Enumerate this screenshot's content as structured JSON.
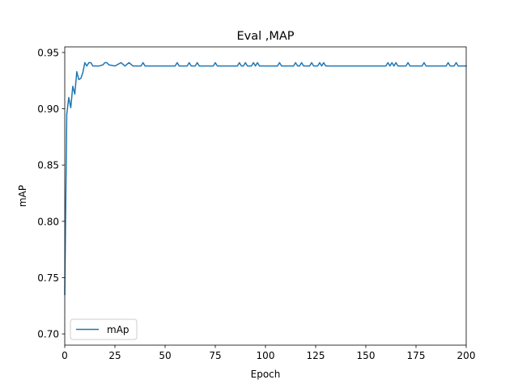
{
  "chart_data": {
    "type": "line",
    "title": "Eval ,MAP",
    "xlabel": "Epoch",
    "ylabel": "mAP",
    "xlim": [
      0,
      200
    ],
    "ylim": [
      0.69,
      0.955
    ],
    "xticks": [
      0,
      25,
      50,
      75,
      100,
      125,
      150,
      175,
      200
    ],
    "yticks": [
      0.7,
      0.75,
      0.8,
      0.85,
      0.9,
      0.95
    ],
    "xtick_labels": [
      "0",
      "25",
      "50",
      "75",
      "100",
      "125",
      "150",
      "175",
      "200"
    ],
    "ytick_labels": [
      "0.70",
      "0.75",
      "0.80",
      "0.85",
      "0.90",
      "0.95"
    ],
    "grid": false,
    "legend": {
      "placement": "lower-left"
    },
    "series": [
      {
        "name": "mAp",
        "color": "#1f77b4",
        "points": [
          [
            0,
            0.735
          ],
          [
            1,
            0.895
          ],
          [
            2,
            0.91
          ],
          [
            3,
            0.901
          ],
          [
            4,
            0.92
          ],
          [
            5,
            0.913
          ],
          [
            6,
            0.933
          ],
          [
            7,
            0.926
          ],
          [
            8,
            0.927
          ],
          [
            9,
            0.932
          ],
          [
            10,
            0.941
          ],
          [
            11,
            0.938
          ],
          [
            12,
            0.941
          ],
          [
            13,
            0.941
          ],
          [
            14,
            0.938
          ],
          [
            15,
            0.938
          ],
          [
            17,
            0.938
          ],
          [
            19,
            0.939
          ],
          [
            20,
            0.941
          ],
          [
            21,
            0.941
          ],
          [
            22,
            0.939
          ],
          [
            25,
            0.938
          ],
          [
            28,
            0.941
          ],
          [
            30,
            0.938
          ],
          [
            32,
            0.941
          ],
          [
            34,
            0.938
          ],
          [
            38,
            0.938
          ],
          [
            39,
            0.941
          ],
          [
            40,
            0.938
          ],
          [
            55,
            0.938
          ],
          [
            56,
            0.941
          ],
          [
            57,
            0.938
          ],
          [
            61,
            0.938
          ],
          [
            62,
            0.941
          ],
          [
            63,
            0.938
          ],
          [
            65,
            0.938
          ],
          [
            66,
            0.941
          ],
          [
            67,
            0.938
          ],
          [
            74,
            0.938
          ],
          [
            75,
            0.941
          ],
          [
            76,
            0.938
          ],
          [
            86,
            0.938
          ],
          [
            87,
            0.941
          ],
          [
            88,
            0.938
          ],
          [
            89,
            0.938
          ],
          [
            90,
            0.941
          ],
          [
            91,
            0.938
          ],
          [
            93,
            0.938
          ],
          [
            94,
            0.941
          ],
          [
            95,
            0.938
          ],
          [
            96,
            0.941
          ],
          [
            97,
            0.938
          ],
          [
            106,
            0.938
          ],
          [
            107,
            0.941
          ],
          [
            108,
            0.938
          ],
          [
            114,
            0.938
          ],
          [
            115,
            0.941
          ],
          [
            116,
            0.938
          ],
          [
            117,
            0.938
          ],
          [
            118,
            0.941
          ],
          [
            119,
            0.938
          ],
          [
            122,
            0.938
          ],
          [
            123,
            0.941
          ],
          [
            124,
            0.938
          ],
          [
            126,
            0.938
          ],
          [
            127,
            0.941
          ],
          [
            128,
            0.938
          ],
          [
            129,
            0.941
          ],
          [
            130,
            0.938
          ],
          [
            160,
            0.938
          ],
          [
            161,
            0.941
          ],
          [
            162,
            0.938
          ],
          [
            163,
            0.941
          ],
          [
            164,
            0.938
          ],
          [
            165,
            0.941
          ],
          [
            166,
            0.938
          ],
          [
            170,
            0.938
          ],
          [
            171,
            0.941
          ],
          [
            172,
            0.938
          ],
          [
            178,
            0.938
          ],
          [
            179,
            0.941
          ],
          [
            180,
            0.938
          ],
          [
            190,
            0.938
          ],
          [
            191,
            0.941
          ],
          [
            192,
            0.938
          ],
          [
            194,
            0.938
          ],
          [
            195,
            0.941
          ],
          [
            196,
            0.938
          ],
          [
            200,
            0.938
          ]
        ]
      }
    ]
  }
}
